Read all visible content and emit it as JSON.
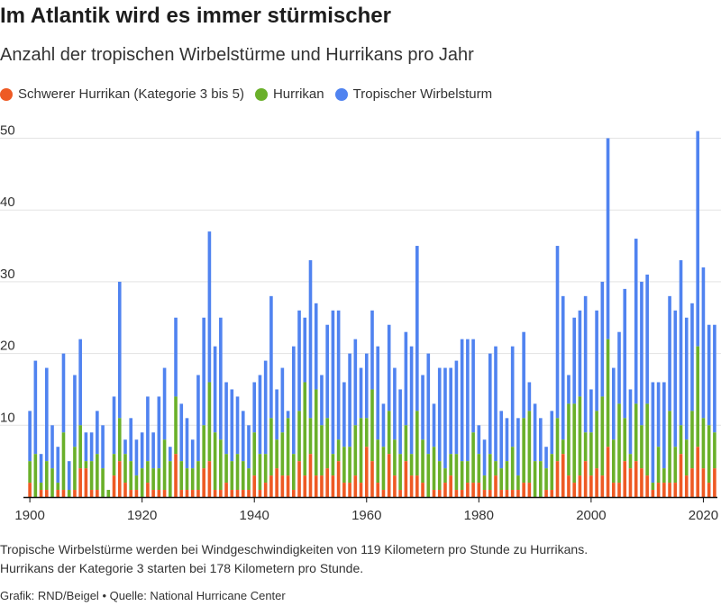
{
  "title": "Im Atlantik wird es immer stürmischer",
  "subtitle": "Anzahl der tropischen Wirbelstürme und Hurrikans pro Jahr",
  "legend": [
    {
      "label": "Schwerer Hurrikan (Kategorie 3 bis 5)",
      "color": "#ee5a24"
    },
    {
      "label": "Hurrikan",
      "color": "#6ab02a"
    },
    {
      "label": "Tropischer Wirbelsturm",
      "color": "#5083f0"
    }
  ],
  "notes": {
    "line1": "Tropische Wirbelstürme werden bei Windgeschwindigkeiten von 119 Kilometern pro Stunde zu Hurrikans.",
    "line2": "Hurrikans der Kategorie 3 starten bei 178 Kilometern pro Stunde."
  },
  "source": {
    "credit": "Grafik: RND/Beigel",
    "separator": "•",
    "origin": "Quelle: National Hurricane Center"
  },
  "chart_data": {
    "type": "bar",
    "stacked": true,
    "x_start": 1900,
    "x_end": 2022,
    "x_ticks": [
      1900,
      1920,
      1940,
      1960,
      1980,
      2000,
      2020
    ],
    "y_ticks": [
      10,
      20,
      30,
      40,
      50
    ],
    "ylim": [
      0,
      52
    ],
    "grid": true,
    "legend_position": "top-left",
    "series_colors": [
      "#ee5a24",
      "#6ab02a",
      "#5083f0"
    ],
    "totals": [
      12,
      19,
      6,
      18,
      10,
      7,
      20,
      5,
      17,
      22,
      9,
      9,
      12,
      10,
      1,
      14,
      30,
      8,
      11,
      8,
      9,
      14,
      9,
      14,
      18,
      7,
      25,
      13,
      11,
      8,
      17,
      25,
      37,
      21,
      25,
      16,
      15,
      14,
      12,
      10,
      16,
      17,
      19,
      28,
      15,
      18,
      12,
      21,
      26,
      25,
      33,
      27,
      17,
      24,
      26,
      26,
      16,
      20,
      22,
      18,
      20,
      26,
      21,
      13,
      24,
      18,
      15,
      23,
      21,
      35,
      17,
      20,
      13,
      18,
      18,
      18,
      19,
      22,
      22,
      22,
      10,
      8,
      20,
      21,
      12,
      11,
      21,
      11,
      23,
      16,
      13,
      11,
      7,
      12,
      35,
      28,
      17,
      25,
      26,
      28,
      15,
      26,
      30,
      50,
      18,
      23,
      29,
      15,
      36,
      30,
      31,
      16,
      16,
      16,
      28,
      26,
      33,
      25,
      27,
      51,
      32,
      24,
      24
    ],
    "hurricanes": [
      5,
      6,
      2,
      5,
      4,
      2,
      9,
      1,
      7,
      10,
      5,
      5,
      6,
      4,
      1,
      6,
      11,
      6,
      5,
      3,
      4,
      5,
      4,
      4,
      8,
      5,
      14,
      5,
      4,
      4,
      5,
      10,
      16,
      9,
      8,
      6,
      5,
      6,
      5,
      4,
      9,
      6,
      6,
      11,
      8,
      9,
      11,
      6,
      12,
      16,
      11,
      15,
      10,
      11,
      6,
      8,
      7,
      7,
      10,
      11,
      11,
      15,
      8,
      7,
      12,
      8,
      6,
      10,
      6,
      12,
      8,
      6,
      7,
      5,
      4,
      6,
      6,
      5,
      5,
      9,
      6,
      3,
      6,
      5,
      4,
      5,
      7,
      3,
      11,
      12,
      5,
      5,
      4,
      6,
      11,
      8,
      13,
      13,
      14,
      9,
      9,
      12,
      14,
      22,
      8,
      13,
      11,
      6,
      13,
      10,
      13,
      2,
      7,
      4,
      12,
      7,
      10,
      8,
      12,
      21,
      11,
      10,
      9
    ],
    "major": [
      2,
      0,
      1,
      1,
      0,
      1,
      1,
      0,
      1,
      4,
      4,
      1,
      1,
      0,
      0,
      3,
      5,
      2,
      1,
      1,
      0,
      2,
      1,
      1,
      1,
      0,
      6,
      1,
      1,
      1,
      1,
      4,
      5,
      1,
      1,
      2,
      1,
      1,
      1,
      1,
      3,
      1,
      2,
      3,
      4,
      3,
      3,
      1,
      5,
      3,
      6,
      3,
      3,
      4,
      3,
      5,
      2,
      2,
      3,
      2,
      7,
      5,
      2,
      1,
      6,
      3,
      1,
      5,
      3,
      3,
      2,
      0,
      1,
      1,
      2,
      3,
      1,
      1,
      2,
      2,
      2,
      1,
      1,
      3,
      1,
      1,
      1,
      1,
      2,
      2,
      0,
      0,
      1,
      1,
      5,
      6,
      3,
      2,
      3,
      5,
      3,
      4,
      3,
      7,
      2,
      2,
      5,
      4,
      5,
      4,
      3,
      1,
      2,
      2,
      2,
      2,
      6,
      3,
      4,
      7,
      4,
      2,
      4
    ]
  }
}
